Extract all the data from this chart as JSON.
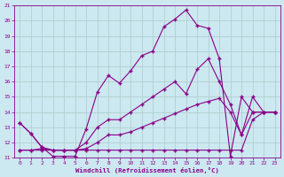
{
  "xlabel": "Windchill (Refroidissement éolien,°C)",
  "background_color": "#cce8f0",
  "line_color": "#880088",
  "grid_color": "#aacccc",
  "xlim": [
    -0.5,
    23.5
  ],
  "ylim": [
    11,
    21
  ],
  "xticks": [
    0,
    1,
    2,
    3,
    4,
    5,
    6,
    7,
    8,
    9,
    10,
    11,
    12,
    13,
    14,
    15,
    16,
    17,
    18,
    19,
    20,
    21,
    22,
    23
  ],
  "yticks": [
    11,
    12,
    13,
    14,
    15,
    16,
    17,
    18,
    19,
    20,
    21
  ],
  "line1_x": [
    0,
    1,
    2,
    3,
    4,
    5,
    6,
    7,
    8,
    9,
    10,
    11,
    12,
    13,
    14,
    15,
    16,
    17,
    18,
    19,
    20,
    21,
    22,
    23
  ],
  "line1_y": [
    13.3,
    12.6,
    11.7,
    11.1,
    11.1,
    11.1,
    12.9,
    15.3,
    16.4,
    15.9,
    16.7,
    17.7,
    18.0,
    19.6,
    20.1,
    20.7,
    19.7,
    19.5,
    17.5,
    11.1,
    15.0,
    14.0,
    14.0,
    14.0
  ],
  "line2_x": [
    0,
    1,
    2,
    3,
    4,
    5,
    6,
    7,
    8,
    9,
    10,
    11,
    12,
    13,
    14,
    15,
    16,
    17,
    18,
    19,
    20,
    21,
    22,
    23
  ],
  "line2_y": [
    11.5,
    11.5,
    11.5,
    11.5,
    11.5,
    11.5,
    11.5,
    11.5,
    11.5,
    11.5,
    11.5,
    11.5,
    11.5,
    11.5,
    11.5,
    11.5,
    11.5,
    11.5,
    11.5,
    11.5,
    11.5,
    13.5,
    14.0,
    14.0
  ],
  "line3_x": [
    0,
    1,
    2,
    3,
    4,
    5,
    6,
    7,
    8,
    9,
    10,
    11,
    12,
    13,
    14,
    15,
    16,
    17,
    18,
    19,
    20,
    21,
    22,
    23
  ],
  "line3_y": [
    11.5,
    11.5,
    11.6,
    11.5,
    11.5,
    11.5,
    11.6,
    12.0,
    12.5,
    12.5,
    12.7,
    13.0,
    13.3,
    13.6,
    13.9,
    14.2,
    14.5,
    14.7,
    14.9,
    14.0,
    12.5,
    14.0,
    14.0,
    14.0
  ],
  "line4_x": [
    0,
    1,
    2,
    3,
    4,
    5,
    6,
    7,
    8,
    9,
    10,
    11,
    12,
    13,
    14,
    15,
    16,
    17,
    18,
    19,
    20,
    21,
    22,
    23
  ],
  "line4_y": [
    13.3,
    12.6,
    11.7,
    11.5,
    11.5,
    11.5,
    12.0,
    13.0,
    13.5,
    13.5,
    14.0,
    14.5,
    15.0,
    15.5,
    16.0,
    15.2,
    16.8,
    17.5,
    16.0,
    14.5,
    12.5,
    15.0,
    14.0,
    14.0
  ]
}
